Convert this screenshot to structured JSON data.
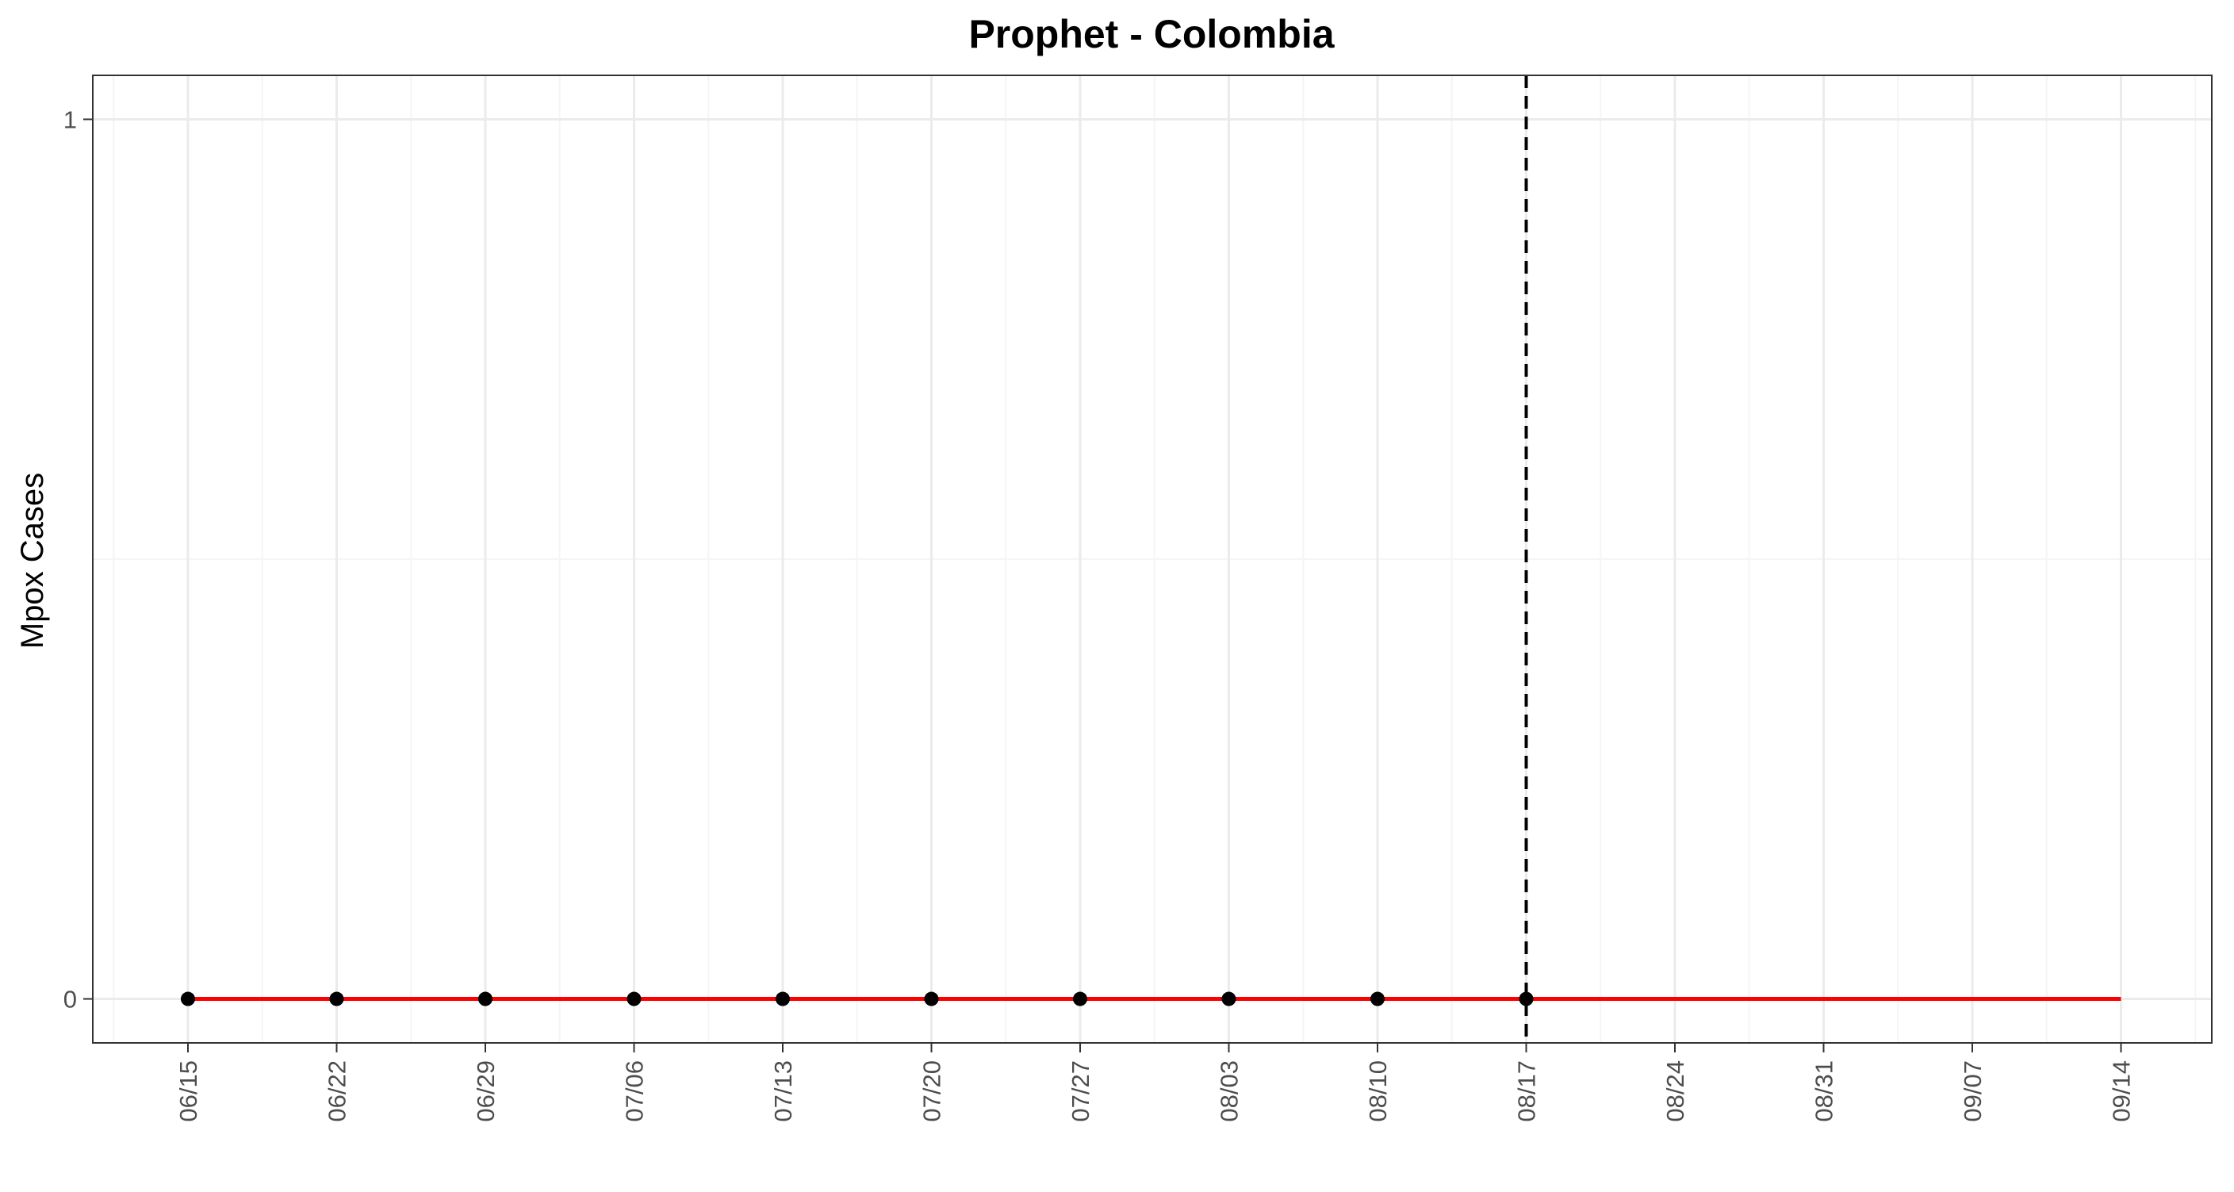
{
  "chart_data": {
    "type": "line",
    "title": "Prophet - Colombia",
    "xlabel": "",
    "ylabel": "Mpox Cases",
    "x_tick_labels": [
      "06/15",
      "06/22",
      "06/29",
      "07/06",
      "07/13",
      "07/20",
      "07/27",
      "08/03",
      "08/10",
      "08/17",
      "08/24",
      "08/31",
      "09/07",
      "09/14"
    ],
    "y_tick_labels": [
      "0",
      "1"
    ],
    "ylim": [
      -0.05,
      1.05
    ],
    "grid": true,
    "observed": {
      "x": [
        "06/15",
        "06/22",
        "06/29",
        "07/06",
        "07/13",
        "07/20",
        "07/27",
        "08/03",
        "08/10",
        "08/17"
      ],
      "y": [
        0,
        0,
        0,
        0,
        0,
        0,
        0,
        0,
        0,
        0
      ]
    },
    "forecast": {
      "x": [
        "06/15",
        "06/22",
        "06/29",
        "07/06",
        "07/13",
        "07/20",
        "07/27",
        "08/03",
        "08/10",
        "08/17",
        "08/24",
        "08/31",
        "09/07",
        "09/14"
      ],
      "y": [
        0,
        0,
        0,
        0,
        0,
        0,
        0,
        0,
        0,
        0,
        0,
        0,
        0,
        0
      ]
    },
    "cutoff_x": "08/17",
    "colors": {
      "forecast_line": "#ff0000",
      "observed_points": "#000000",
      "cutoff_line": "#000000",
      "grid_major": "#ebebeb",
      "grid_minor": "#f5f5f5",
      "panel_border": "#333333"
    }
  }
}
